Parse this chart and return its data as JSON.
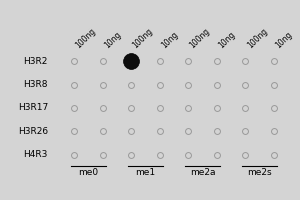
{
  "rows": [
    "H3R2",
    "H3R8",
    "H3R17",
    "H3R26",
    "H4R3"
  ],
  "col_groups": [
    "me0",
    "me1",
    "me2a",
    "me2s"
  ],
  "col_labels": [
    "100ng",
    "10ng",
    "100ng",
    "10ng",
    "100ng",
    "10ng",
    "100ng",
    "10ng"
  ],
  "filled_dot": [
    0,
    2
  ],
  "bg_color": "#d4d4d4",
  "dot_empty_facecolor": "#d4d4d4",
  "dot_empty_edgecolor": "#999999",
  "dot_filled_facecolor": "#0d0d0d",
  "dot_filled_edgecolor": "#000000",
  "row_label_fontsize": 6.5,
  "col_label_fontsize": 5.5,
  "group_label_fontsize": 6.5,
  "dot_size_empty": 18,
  "dot_size_filled": 130,
  "dot_lw_empty": 0.7,
  "dot_lw_filled": 0.5
}
